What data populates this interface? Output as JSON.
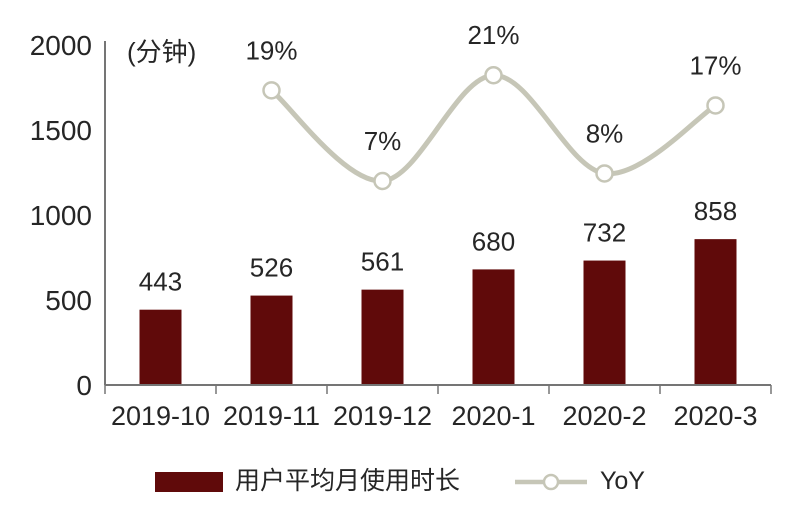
{
  "chart_data": {
    "type": "combo-bar-line",
    "title": "",
    "unit_label": "(分钟)",
    "categories": [
      "2019-10",
      "2019-11",
      "2019-12",
      "2020-1",
      "2020-2",
      "2020-3"
    ],
    "series": [
      {
        "name": "用户平均月使用时长",
        "type": "bar",
        "axis": "primary",
        "color": "#600A0A",
        "values": [
          443,
          526,
          561,
          680,
          732,
          858
        ],
        "value_labels": [
          "443",
          "526",
          "561",
          "680",
          "732",
          "858"
        ]
      },
      {
        "name": "YoY",
        "type": "line",
        "axis": "secondary",
        "color": "#C6C6B7",
        "marker": "hollow-circle",
        "values": [
          null,
          19,
          7,
          21,
          8,
          17
        ],
        "value_labels": [
          "",
          "19%",
          "7%",
          "21%",
          "8%",
          "17%"
        ]
      }
    ],
    "primary_axis": {
      "min": 0,
      "max": 2000,
      "ticks": [
        "0",
        "500",
        "1000",
        "1500",
        "2000"
      ],
      "tick_values": [
        0,
        500,
        1000,
        1500,
        2000
      ]
    },
    "secondary_axis": {
      "min": -20,
      "max": 25,
      "visible": false
    },
    "grid": false,
    "legend_position": "bottom",
    "background_color": "#ffffff",
    "text_color": "#262626",
    "axis_color": "#757575"
  }
}
